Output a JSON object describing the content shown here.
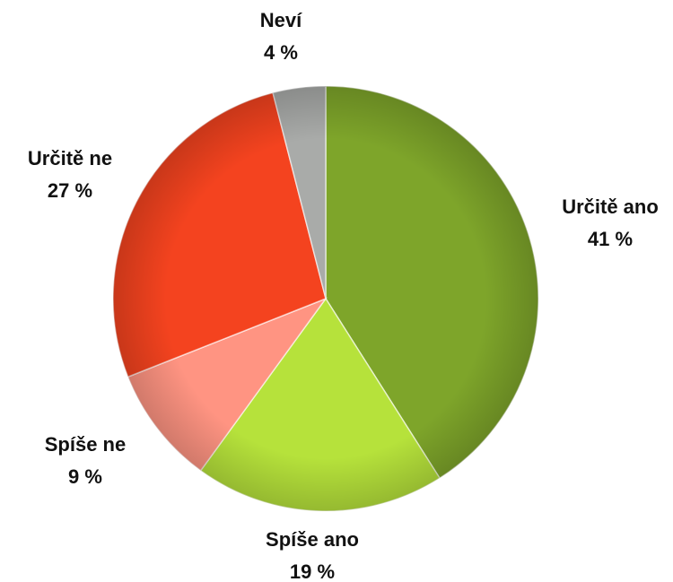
{
  "chart_data": {
    "type": "pie",
    "categories": [
      "Určitě ano",
      "Spíše ano",
      "Spíše ne",
      "Určitě ne",
      "Neví"
    ],
    "values": [
      41,
      19,
      9,
      27,
      4
    ],
    "value_labels": [
      "41 %",
      "19 %",
      "9 %",
      "27 %",
      "4 %"
    ],
    "colors": [
      "#7ea52a",
      "#b6e23b",
      "#ff9482",
      "#f4431f",
      "#a9aba9"
    ]
  }
}
